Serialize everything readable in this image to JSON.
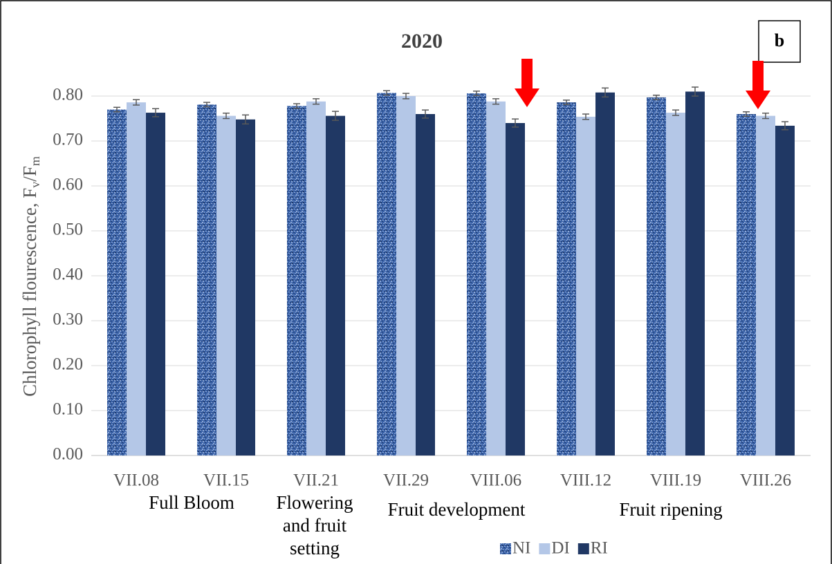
{
  "chart_data": {
    "type": "bar",
    "title": "2020",
    "panel_label": "b",
    "y_label": [
      "Chlorophyll flourescence, F",
      "v",
      "/F",
      "m"
    ],
    "categories": [
      "VII.08",
      "VII.15",
      "VII.21",
      "VII.29",
      "VIII.06",
      "VIII.12",
      "VIII.19",
      "VIII.26"
    ],
    "series": [
      {
        "name": "NI",
        "color": "#3a62a8",
        "textured": true,
        "values": [
          0.77,
          0.781,
          0.778,
          0.807,
          0.806,
          0.786,
          0.797,
          0.76
        ],
        "errors": [
          0.005,
          0.005,
          0.005,
          0.005,
          0.005,
          0.005,
          0.005,
          0.005
        ]
      },
      {
        "name": "DI",
        "color": "#b4c7e7",
        "values": [
          0.786,
          0.756,
          0.788,
          0.8,
          0.788,
          0.754,
          0.763,
          0.756
        ],
        "errors": [
          0.006,
          0.006,
          0.006,
          0.006,
          0.006,
          0.006,
          0.006,
          0.006
        ]
      },
      {
        "name": "RI",
        "color": "#203864",
        "values": [
          0.763,
          0.748,
          0.756,
          0.76,
          0.74,
          0.808,
          0.81,
          0.734
        ],
        "errors": [
          0.009,
          0.01,
          0.01,
          0.009,
          0.009,
          0.01,
          0.01,
          0.009
        ]
      }
    ],
    "ylim": [
      0,
      0.8
    ],
    "yticks": [
      {
        "value": 0,
        "label": "0.00"
      },
      {
        "value": 0.1,
        "label": "0.10"
      },
      {
        "value": 0.2,
        "label": "0.20"
      },
      {
        "value": 0.3,
        "label": "0.30"
      },
      {
        "value": 0.4,
        "label": "0.40"
      },
      {
        "value": 0.5,
        "label": "0.50"
      },
      {
        "value": 0.6,
        "label": "0.60"
      },
      {
        "value": 0.7,
        "label": "0.70"
      },
      {
        "value": 0.8,
        "label": "0.80"
      }
    ],
    "grid": true,
    "legend": "bottom",
    "annotations": [
      {
        "lines": [
          "Full Bloom"
        ]
      },
      {
        "lines": [
          "Flowering",
          "and fruit",
          "setting"
        ]
      },
      {
        "lines": [
          "Fruit development"
        ]
      },
      {
        "lines": [
          "Fruit ripening"
        ]
      }
    ]
  }
}
